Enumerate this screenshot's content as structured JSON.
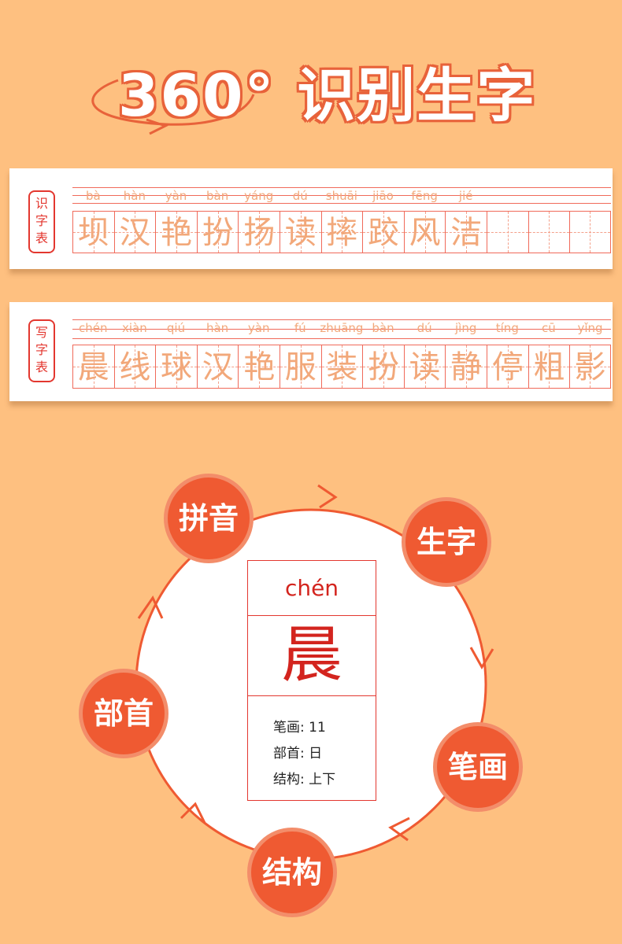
{
  "header": {
    "title": "360° 识别生字"
  },
  "recognize_table": {
    "label": "识字表",
    "pinyin": [
      "bà",
      "hàn",
      "yàn",
      "bàn",
      "yáng",
      "dú",
      "shuāi",
      "jiāo",
      "fēng",
      "jié"
    ],
    "chars": [
      "坝",
      "汉",
      "艳",
      "扮",
      "扬",
      "读",
      "摔",
      "跤",
      "风",
      "洁"
    ]
  },
  "writing_table": {
    "label": "写字表",
    "pinyin": [
      "chén",
      "xiàn",
      "qiú",
      "hàn",
      "yàn",
      "fú",
      "zhuāng",
      "bàn",
      "dú",
      "jìng",
      "tíng",
      "cū",
      "yǐng"
    ],
    "chars": [
      "晨",
      "线",
      "球",
      "汉",
      "艳",
      "服",
      "装",
      "扮",
      "读",
      "静",
      "停",
      "粗",
      "影"
    ]
  },
  "wheel": {
    "nodes": [
      "拼音",
      "生字",
      "笔画",
      "结构",
      "部首"
    ],
    "center": {
      "pinyin": "chén",
      "char": "晨",
      "info": [
        {
          "label": "笔画",
          "value": "11"
        },
        {
          "label": "部首",
          "value": "日"
        },
        {
          "label": "结构",
          "value": "上下"
        }
      ]
    }
  },
  "colors": {
    "background": "#fec080",
    "accent": "#ef5a32",
    "red": "#d3241e"
  }
}
